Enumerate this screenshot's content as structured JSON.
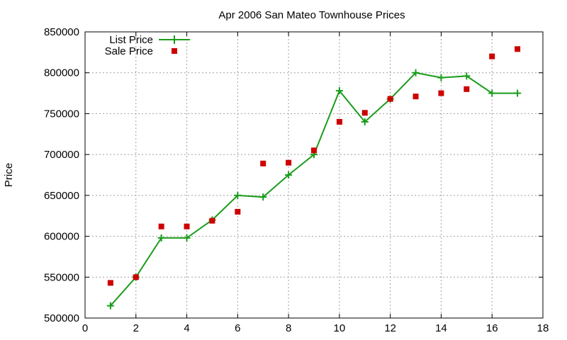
{
  "chart_data": {
    "type": "line",
    "title": "Apr 2006 San Mateo Townhouse Prices",
    "xlabel": "",
    "ylabel": "Price",
    "xlim": [
      0,
      18
    ],
    "ylim": [
      500000,
      850000
    ],
    "x_ticks": [
      0,
      2,
      4,
      6,
      8,
      10,
      12,
      14,
      16,
      18
    ],
    "y_ticks": [
      500000,
      550000,
      600000,
      650000,
      700000,
      750000,
      800000,
      850000
    ],
    "x_tick_labels": [
      "0",
      "2",
      "4",
      "6",
      "8",
      "10",
      "12",
      "14",
      "16",
      "18"
    ],
    "y_tick_labels": [
      "500000",
      "550000",
      "600000",
      "650000",
      "700000",
      "750000",
      "800000",
      "850000"
    ],
    "grid": true,
    "legend_position": "top-left",
    "series": [
      {
        "name": "List Price",
        "style": "line-with-plus-markers",
        "color": "#1a9c1a",
        "x": [
          1,
          2,
          3,
          4,
          5,
          6,
          7,
          8,
          9,
          10,
          11,
          12,
          13,
          14,
          15,
          16,
          17
        ],
        "y": [
          515000,
          550000,
          598000,
          598000,
          620000,
          650000,
          648000,
          675000,
          700000,
          778000,
          740000,
          768000,
          800000,
          794000,
          796000,
          775000,
          775000
        ]
      },
      {
        "name": "Sale Price",
        "style": "square-markers",
        "color": "#cc0000",
        "x": [
          1,
          2,
          3,
          4,
          5,
          6,
          7,
          8,
          9,
          10,
          11,
          12,
          13,
          14,
          15,
          16,
          17
        ],
        "y": [
          543000,
          550000,
          612000,
          612000,
          619000,
          630000,
          689000,
          690000,
          705000,
          740000,
          751000,
          768000,
          771000,
          775000,
          780000,
          820000,
          829000
        ]
      }
    ]
  }
}
